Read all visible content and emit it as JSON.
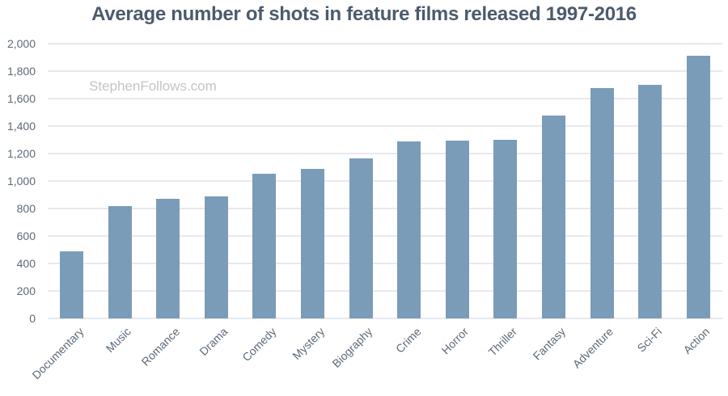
{
  "chart_data": {
    "type": "bar",
    "title": "Average number of shots in feature films released 1997-2016",
    "xlabel": "",
    "ylabel": "",
    "categories": [
      "Documentary",
      "Music",
      "Romance",
      "Drama",
      "Comedy",
      "Mystery",
      "Biography",
      "Crime",
      "Horror",
      "Thriller",
      "Fantasy",
      "Adventure",
      "Sci-Fi",
      "Action"
    ],
    "values": [
      490,
      815,
      870,
      888,
      1053,
      1086,
      1167,
      1288,
      1295,
      1300,
      1474,
      1678,
      1702,
      1912
    ],
    "ylim": [
      0,
      2000
    ],
    "yticks": [
      0,
      200,
      400,
      600,
      800,
      1000,
      1200,
      1400,
      1600,
      1800,
      2000
    ],
    "ytick_labels": [
      "0",
      "200",
      "400",
      "600",
      "800",
      "1,000",
      "1,200",
      "1,400",
      "1,600",
      "1,800",
      "2,000"
    ],
    "grid": true,
    "legend": null,
    "annotations": [
      "StephenFollows.com"
    ],
    "colors": {
      "bar": "#7a9cb8",
      "grid": "#e6e9ef",
      "text": "#5b6a79",
      "title": "#4b5b6c",
      "watermark": "#c4c4c4"
    }
  },
  "header": {
    "title": "Average number of shots in feature films released 1997-2016"
  },
  "watermark": {
    "text": "StephenFollows.com"
  }
}
